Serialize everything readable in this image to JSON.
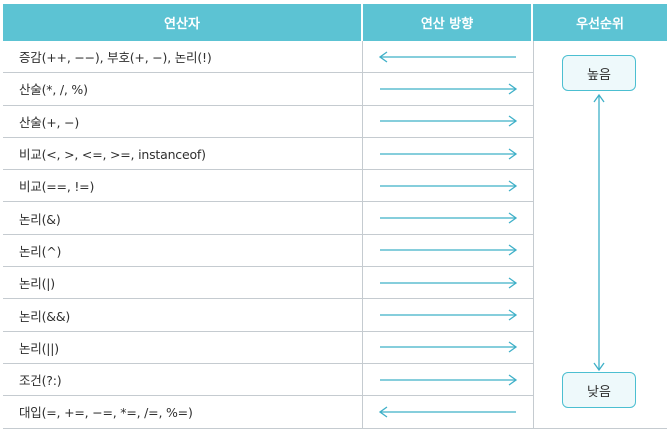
{
  "headers": {
    "operator": "연산자",
    "direction": "연산 방향",
    "precedence": "우선순위"
  },
  "rows": [
    {
      "operator": "증감(++, −−), 부호(+, −), 논리(!)",
      "direction": "left"
    },
    {
      "operator": "산술(*, /, %)",
      "direction": "right"
    },
    {
      "operator": "산술(+, −)",
      "direction": "right"
    },
    {
      "operator": "비교(<, >, <=, >=, instanceof)",
      "direction": "right"
    },
    {
      "operator": "비교(==, !=)",
      "direction": "right"
    },
    {
      "operator": "논리(&)",
      "direction": "right"
    },
    {
      "operator": "논리(^)",
      "direction": "right"
    },
    {
      "operator": "논리(|)",
      "direction": "right"
    },
    {
      "operator": "논리(&&)",
      "direction": "right"
    },
    {
      "operator": "논리(||)",
      "direction": "right"
    },
    {
      "operator": "조건(?:)",
      "direction": "right"
    },
    {
      "operator": "대입(=, +=, −=, *=, /=, %=)",
      "direction": "left"
    }
  ],
  "precedence": {
    "high": "높음",
    "low": "낮음"
  },
  "colors": {
    "header": "#5cc3d3",
    "arrow": "#3fb0c8"
  }
}
